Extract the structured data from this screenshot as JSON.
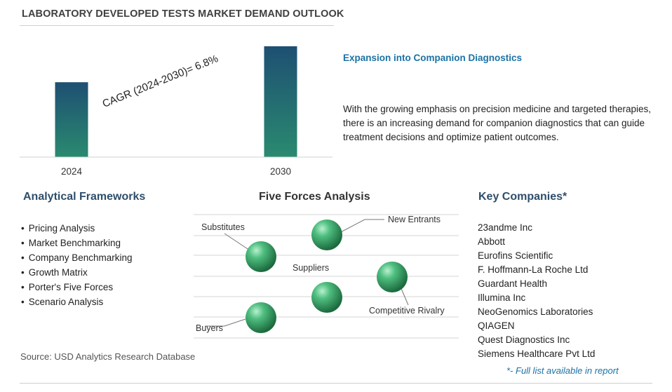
{
  "title": "LABORATORY DEVELOPED TESTS MARKET DEMAND OUTLOOK",
  "chart_data": {
    "type": "bar",
    "categories": [
      "2024",
      "2030"
    ],
    "values": [
      1.0,
      1.48
    ],
    "title": "",
    "xlabel": "",
    "ylabel": "",
    "annotation": "CAGR (2024-2030)=  6.8%",
    "colors": [
      "#1e4f72",
      "#2a8a70"
    ]
  },
  "highlight": {
    "title": "Expansion into Companion Diagnostics",
    "text": "With the growing emphasis on precision medicine and targeted therapies, there is an increasing demand for companion diagnostics that can guide treatment decisions and optimize patient outcomes."
  },
  "frameworks": {
    "title": "Analytical Frameworks",
    "items": [
      "Pricing Analysis",
      "Market Benchmarking",
      "Company Benchmarking",
      "Growth Matrix",
      "Porter's Five Forces",
      "Scenario Analysis"
    ]
  },
  "five_forces": {
    "title": "Five Forces Analysis",
    "labels": {
      "substitutes": "Substitutes",
      "new_entrants": "New Entrants",
      "suppliers": "Suppliers",
      "competitive_rivalry": "Competitive Rivalry",
      "buyers": "Buyers"
    }
  },
  "companies": {
    "title": "Key Companies*",
    "items": [
      "23andme Inc",
      "Abbott",
      "Eurofins Scientific",
      "F. Hoffmann-La Roche Ltd",
      "Guardant Health",
      "Illumina Inc",
      "NeoGenomics Laboratories",
      "QIAGEN",
      "Quest Diagnostics Inc",
      "Siemens Healthcare Pvt Ltd"
    ],
    "note": "*- Full list available in report"
  },
  "source": "Source: USD Analytics Research Database"
}
